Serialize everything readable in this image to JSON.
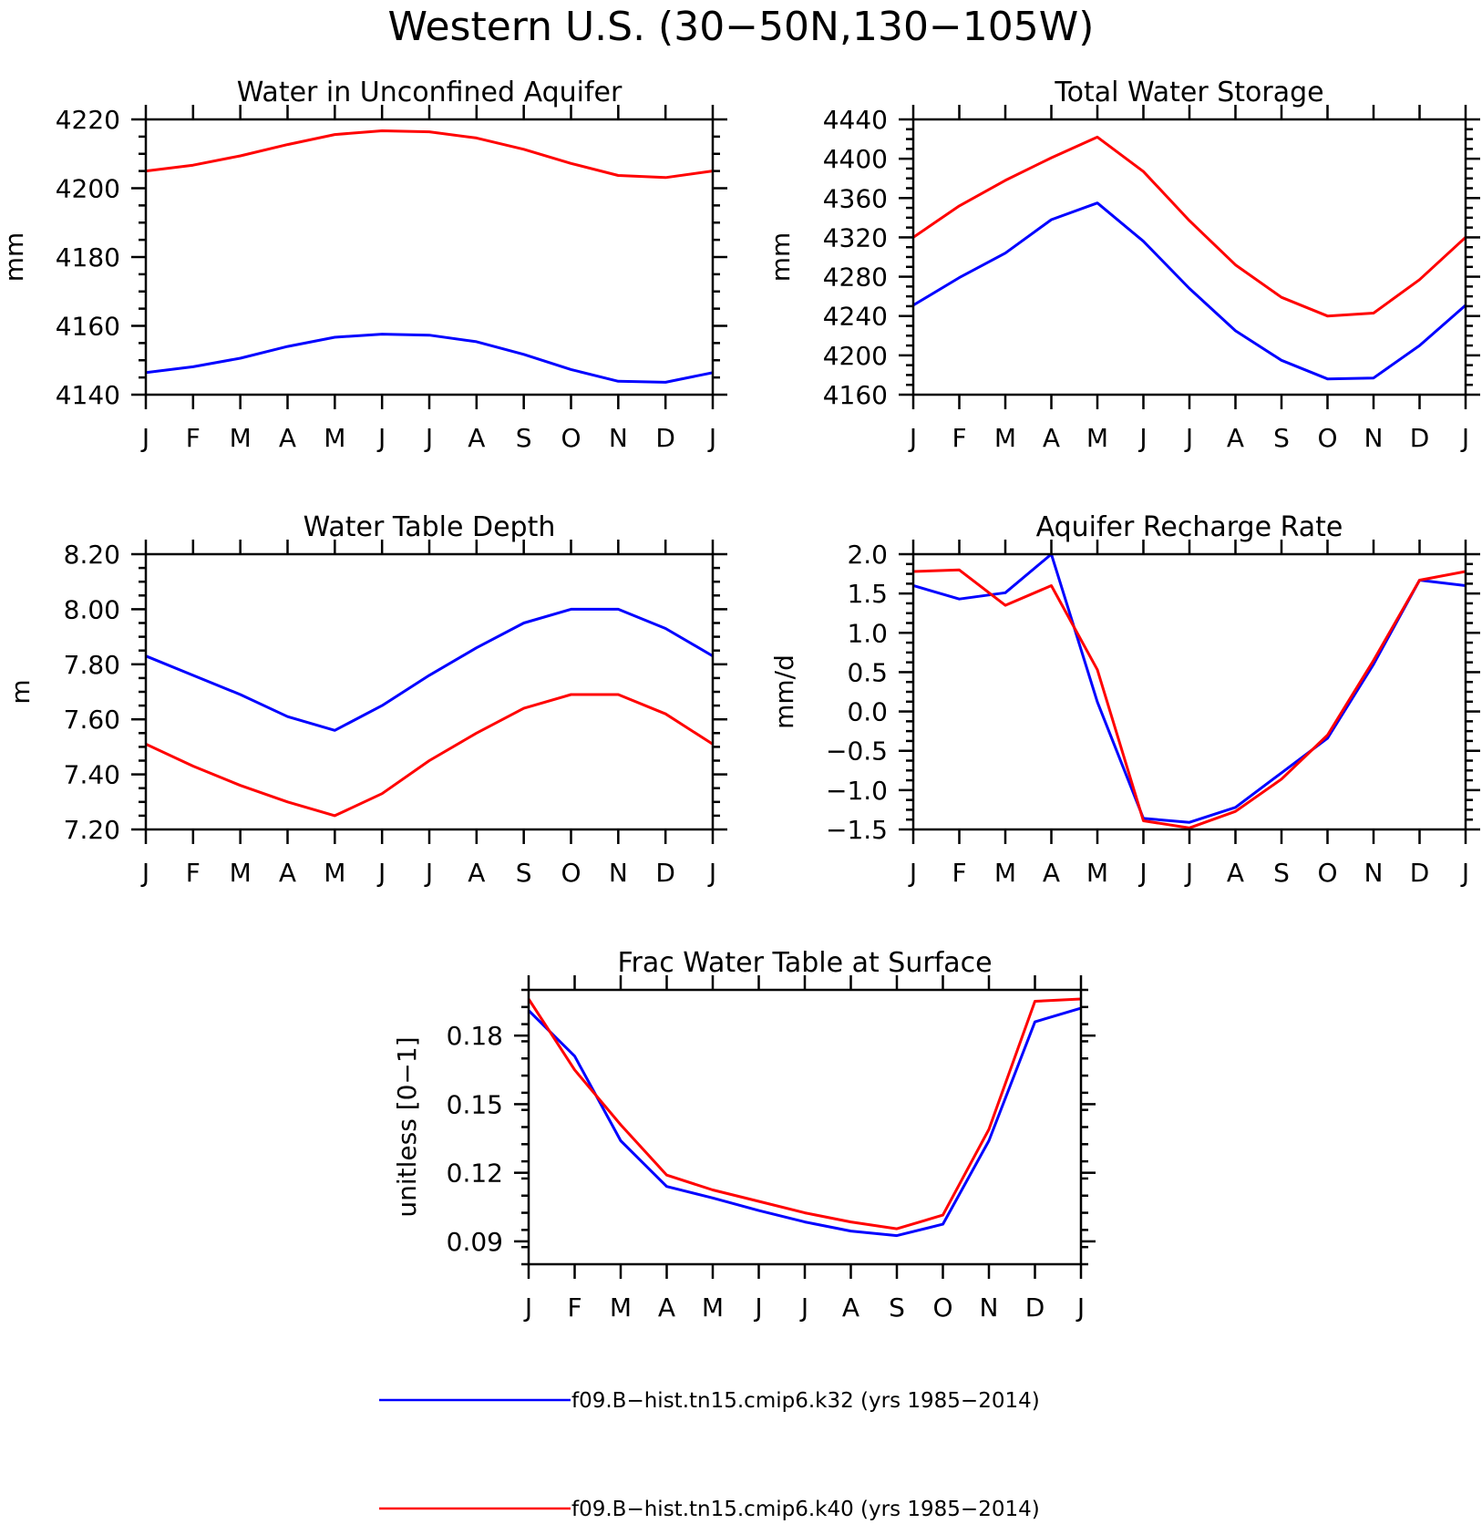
{
  "title": "Western U.S. (30−50N,130−105W)",
  "colors": {
    "k32": "#0000ff",
    "k40": "#ff0000"
  },
  "legend": [
    {
      "label": "f09.B−hist.tn15.cmip6.k32 (yrs 1985−2014)",
      "color": "#0000ff"
    },
    {
      "label": "f09.B−hist.tn15.cmip6.k40 (yrs 1985−2014)",
      "color": "#ff0000"
    }
  ],
  "chart_data": [
    {
      "type": "line",
      "title": "Water in Unconfined Aquifer",
      "xlabel": "",
      "ylabel": "mm",
      "categories": [
        "J",
        "F",
        "M",
        "A",
        "M",
        "J",
        "J",
        "A",
        "S",
        "O",
        "N",
        "D",
        "J"
      ],
      "ylim": [
        4140,
        4220
      ],
      "yticks": [
        4140,
        4160,
        4180,
        4200,
        4220
      ],
      "ytick_labels": [
        "4140",
        "4160",
        "4180",
        "4200",
        "4220"
      ],
      "series": [
        {
          "name": "f09.B−hist.tn15.cmip6.k32 (yrs 1985−2014)",
          "color": "#0000ff",
          "values": [
            4146.4,
            4148.1,
            4150.6,
            4154.0,
            4156.7,
            4157.6,
            4157.3,
            4155.4,
            4151.7,
            4147.3,
            4143.9,
            4143.6,
            4146.4
          ]
        },
        {
          "name": "f09.B−hist.tn15.cmip6.k40 (yrs 1985−2014)",
          "color": "#ff0000",
          "values": [
            4205.0,
            4206.7,
            4209.4,
            4212.7,
            4215.6,
            4216.7,
            4216.4,
            4214.6,
            4211.3,
            4207.2,
            4203.7,
            4203.1,
            4205.0
          ]
        }
      ]
    },
    {
      "type": "line",
      "title": "Total Water Storage",
      "xlabel": "",
      "ylabel": "mm",
      "categories": [
        "J",
        "F",
        "M",
        "A",
        "M",
        "J",
        "J",
        "A",
        "S",
        "O",
        "N",
        "D",
        "J"
      ],
      "ylim": [
        4160,
        4440
      ],
      "yticks": [
        4160,
        4200,
        4240,
        4280,
        4320,
        4360,
        4400,
        4440
      ],
      "ytick_labels": [
        "4160",
        "4200",
        "4240",
        "4280",
        "4320",
        "4360",
        "4400",
        "4440"
      ],
      "series": [
        {
          "name": "f09.B−hist.tn15.cmip6.k32 (yrs 1985−2014)",
          "color": "#0000ff",
          "values": [
            4251,
            4279,
            4304,
            4338,
            4355,
            4316,
            4268,
            4225,
            4195,
            4176,
            4177,
            4210,
            4251
          ]
        },
        {
          "name": "f09.B−hist.tn15.cmip6.k40 (yrs 1985−2014)",
          "color": "#ff0000",
          "values": [
            4320,
            4352,
            4378,
            4401,
            4422,
            4387,
            4337,
            4292,
            4259,
            4240,
            4243,
            4277,
            4320
          ]
        }
      ]
    },
    {
      "type": "line",
      "title": "Water Table Depth",
      "xlabel": "",
      "ylabel": "m",
      "categories": [
        "J",
        "F",
        "M",
        "A",
        "M",
        "J",
        "J",
        "A",
        "S",
        "O",
        "N",
        "D",
        "J"
      ],
      "ylim": [
        7.2,
        8.2
      ],
      "yticks": [
        7.2,
        7.4,
        7.6,
        7.8,
        8.0,
        8.2
      ],
      "ytick_labels": [
        "7.20",
        "7.40",
        "7.60",
        "7.80",
        "8.00",
        "8.20"
      ],
      "series": [
        {
          "name": "f09.B−hist.tn15.cmip6.k32 (yrs 1985−2014)",
          "color": "#0000ff",
          "values": [
            7.83,
            7.76,
            7.69,
            7.61,
            7.56,
            7.65,
            7.76,
            7.86,
            7.95,
            8.0,
            8.0,
            7.93,
            7.83
          ]
        },
        {
          "name": "f09.B−hist.tn15.cmip6.k40 (yrs 1985−2014)",
          "color": "#ff0000",
          "values": [
            7.51,
            7.43,
            7.36,
            7.3,
            7.25,
            7.33,
            7.45,
            7.55,
            7.64,
            7.69,
            7.69,
            7.62,
            7.51
          ]
        }
      ]
    },
    {
      "type": "line",
      "title": "Aquifer Recharge Rate",
      "xlabel": "",
      "ylabel": "mm/d",
      "categories": [
        "J",
        "F",
        "M",
        "A",
        "M",
        "J",
        "J",
        "A",
        "S",
        "O",
        "N",
        "D",
        "J"
      ],
      "ylim": [
        -1.5,
        2.0
      ],
      "yticks": [
        -1.5,
        -1.0,
        -0.5,
        0.0,
        0.5,
        1.0,
        1.5,
        2.0
      ],
      "ytick_labels": [
        "−1.5",
        "−1.0",
        "−0.5",
        "0.0",
        "0.5",
        "1.0",
        "1.5",
        "2.0"
      ],
      "series": [
        {
          "name": "f09.B−hist.tn15.cmip6.k32 (yrs 1985−2014)",
          "color": "#0000ff",
          "values": [
            1.6,
            1.43,
            1.51,
            2.0,
            0.12,
            -1.36,
            -1.41,
            -1.22,
            -0.78,
            -0.34,
            0.6,
            1.67,
            1.6
          ]
        },
        {
          "name": "f09.B−hist.tn15.cmip6.k40 (yrs 1985−2014)",
          "color": "#ff0000",
          "values": [
            1.78,
            1.8,
            1.35,
            1.6,
            0.53,
            -1.39,
            -1.48,
            -1.27,
            -0.86,
            -0.3,
            0.65,
            1.67,
            1.78
          ]
        }
      ]
    },
    {
      "type": "line",
      "title": "Frac Water Table at Surface",
      "xlabel": "",
      "ylabel": "unitless [0−1]",
      "categories": [
        "J",
        "F",
        "M",
        "A",
        "M",
        "J",
        "J",
        "A",
        "S",
        "O",
        "N",
        "D",
        "J"
      ],
      "ylim": [
        0.08,
        0.2
      ],
      "yticks": [
        0.09,
        0.12,
        0.15,
        0.18
      ],
      "ytick_labels": [
        "0.09",
        "0.12",
        "0.15",
        "0.18"
      ],
      "series": [
        {
          "name": "f09.B−hist.tn15.cmip6.k32 (yrs 1985−2014)",
          "color": "#0000ff",
          "values": [
            0.191,
            0.171,
            0.134,
            0.114,
            0.109,
            0.1035,
            0.0985,
            0.0945,
            0.0925,
            0.0975,
            0.134,
            0.186,
            0.192
          ]
        },
        {
          "name": "f09.B−hist.tn15.cmip6.k40 (yrs 1985−2014)",
          "color": "#ff0000",
          "values": [
            0.196,
            0.165,
            0.141,
            0.119,
            0.1125,
            0.1075,
            0.1025,
            0.0985,
            0.0955,
            0.1015,
            0.139,
            0.195,
            0.196
          ]
        }
      ]
    }
  ]
}
